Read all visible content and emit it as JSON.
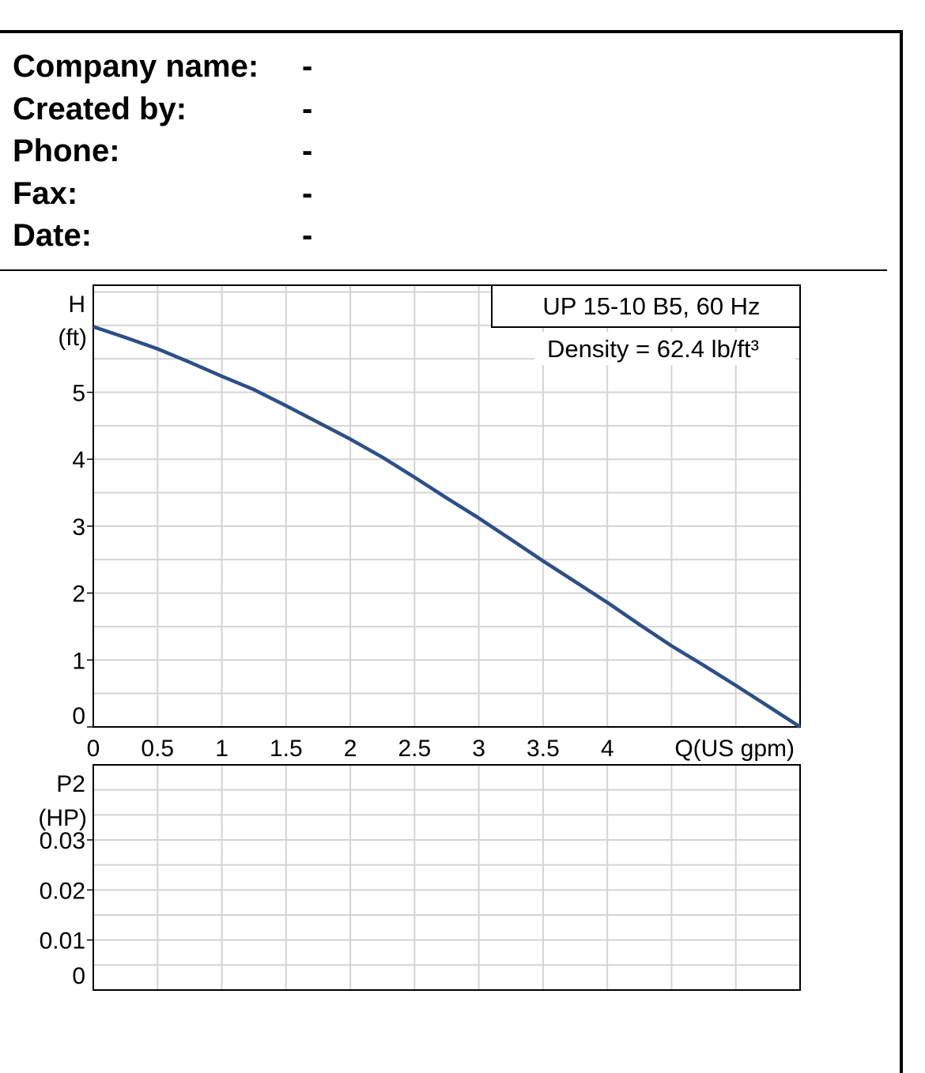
{
  "header": {
    "rows": [
      {
        "label": "Company name:",
        "value": "-"
      },
      {
        "label": "Created by:",
        "value": "-"
      },
      {
        "label": "Phone:",
        "value": "-"
      },
      {
        "label": "Fax:",
        "value": "-"
      },
      {
        "label": "Date:",
        "value": "-"
      }
    ]
  },
  "chart_data": [
    {
      "type": "line",
      "panel": "head",
      "title": "UP 15-10 B5, 60 Hz",
      "subtitle": "Density = 62.4 lb/ft³",
      "ylabel": "H",
      "yunit": "(ft)",
      "xlabel": "Q(US gpm)",
      "xlim": [
        0,
        5.5
      ],
      "ylim": [
        0,
        6.6
      ],
      "xticks": [
        "0",
        "0.5",
        "1",
        "1.5",
        "2",
        "2.5",
        "3",
        "3.5",
        "4"
      ],
      "yticks": [
        "0",
        "1",
        "2",
        "3",
        "4",
        "5"
      ],
      "grid": true,
      "line_color": "#2c4f86",
      "series": [
        {
          "x": [
            0,
            0.25,
            0.5,
            0.75,
            1,
            1.25,
            1.5,
            1.75,
            2,
            2.25,
            2.5,
            2.75,
            3,
            3.25,
            3.5,
            3.75,
            4,
            4.25,
            4.5,
            4.75,
            5,
            5.25,
            5.5
          ],
          "y": [
            5.98,
            5.82,
            5.65,
            5.45,
            5.24,
            5.04,
            4.8,
            4.55,
            4.3,
            4.03,
            3.73,
            3.42,
            3.12,
            2.8,
            2.48,
            2.17,
            1.86,
            1.53,
            1.21,
            0.92,
            0.62,
            0.31,
            0.0
          ]
        }
      ]
    },
    {
      "type": "line",
      "panel": "power",
      "ylabel": "P2",
      "yunit": "(HP)",
      "xlim": [
        0,
        5.5
      ],
      "ylim": [
        0,
        0.045
      ],
      "yticks": [
        "0.03",
        "0.02",
        "0.01",
        "0"
      ],
      "grid": true,
      "series": []
    }
  ]
}
